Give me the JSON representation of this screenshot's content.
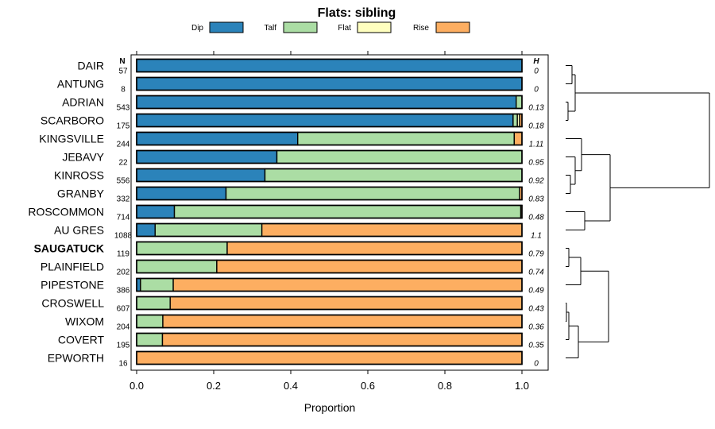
{
  "chart_data": {
    "type": "bar",
    "orientation": "horizontal",
    "stacked": true,
    "title": "Flats: sibling",
    "xlabel": "Proportion",
    "ylabel": "",
    "xlim": [
      0,
      1
    ],
    "x_ticks": [
      "0.0",
      "0.2",
      "0.4",
      "0.6",
      "0.8",
      "1.0"
    ],
    "n_header": "N",
    "h_header": "H",
    "legend": [
      {
        "name": "Dip",
        "color": "#2b83ba"
      },
      {
        "name": "Talf",
        "color": "#abdda4"
      },
      {
        "name": "Flat",
        "color": "#ffffbf"
      },
      {
        "name": "Rise",
        "color": "#fdae61"
      }
    ],
    "legend_position": "top",
    "categories": [
      "DAIR",
      "ANTUNG",
      "ADRIAN",
      "SCARBORO",
      "KINGSVILLE",
      "JEBAVY",
      "KINROSS",
      "GRANBY",
      "ROSCOMMON",
      "AU GRES",
      "SAUGATUCK",
      "PLAINFIELD",
      "PIPESTONE",
      "CROSWELL",
      "WIXOM",
      "COVERT",
      "EPWORTH"
    ],
    "bold_categories": [
      "SAUGATUCK"
    ],
    "n_values": [
      "57",
      "8",
      "543",
      "175",
      "244",
      "22",
      "556",
      "332",
      "714",
      "1088",
      "119",
      "202",
      "386",
      "607",
      "204",
      "195",
      "16"
    ],
    "h_values": [
      "0",
      "0",
      "0.13",
      "0.18",
      "1.11",
      "0.95",
      "0.92",
      "0.83",
      "0.48",
      "1.1",
      "0.79",
      "0.74",
      "0.49",
      "0.43",
      "0.36",
      "0.35",
      "0"
    ],
    "series": [
      {
        "name": "Dip",
        "values": [
          1.0,
          1.0,
          0.985,
          0.977,
          0.418,
          0.364,
          0.333,
          0.232,
          0.098,
          0.048,
          0.0,
          0.0,
          0.01,
          0.0,
          0.0,
          0.0,
          0.0
        ]
      },
      {
        "name": "Talf",
        "values": [
          0.0,
          0.0,
          0.015,
          0.011,
          0.562,
          0.636,
          0.667,
          0.762,
          0.899,
          0.277,
          0.235,
          0.208,
          0.085,
          0.087,
          0.068,
          0.067,
          0.0
        ]
      },
      {
        "name": "Flat",
        "values": [
          0.0,
          0.0,
          0.0,
          0.006,
          0.0,
          0.0,
          0.0,
          0.0,
          0.0,
          0.0,
          0.0,
          0.0,
          0.0,
          0.0,
          0.0,
          0.0,
          0.0
        ]
      },
      {
        "name": "Rise",
        "values": [
          0.0,
          0.0,
          0.0,
          0.006,
          0.02,
          0.0,
          0.0,
          0.006,
          0.003,
          0.675,
          0.765,
          0.792,
          0.905,
          0.913,
          0.932,
          0.933,
          1.0
        ]
      }
    ],
    "dendrogram": {
      "leaf_order": [
        "DAIR",
        "ANTUNG",
        "ADRIAN",
        "SCARBORO",
        "KINGSVILLE",
        "JEBAVY",
        "KINROSS",
        "GRANBY",
        "ROSCOMMON",
        "AU GRES",
        "SAUGATUCK",
        "PLAINFIELD",
        "PIPESTONE",
        "CROSWELL",
        "WIXOM",
        "COVERT",
        "EPWORTH"
      ],
      "merges": [
        {
          "a": "L0",
          "b": "L1",
          "height": 0.01
        },
        {
          "a": "L2",
          "b": "L3",
          "height": 0.004
        },
        {
          "a": "N0",
          "b": "N1",
          "height": 0.03
        },
        {
          "a": "L6",
          "b": "L7",
          "height": 0.018
        },
        {
          "a": "L5",
          "b": "N3",
          "height": 0.03
        },
        {
          "a": "L4",
          "b": "N4",
          "height": 0.06
        },
        {
          "a": "L8",
          "b": "L9",
          "height": 0.02
        },
        {
          "a": "L10",
          "b": "N6",
          "height": 0.18
        },
        {
          "a": "N5",
          "b": "N7",
          "height": 0.24
        },
        {
          "a": "L11",
          "b": "L12",
          "height": 0.014
        },
        {
          "a": "L10b",
          "b": "N9",
          "height": 0.0
        }
      ]
    }
  }
}
